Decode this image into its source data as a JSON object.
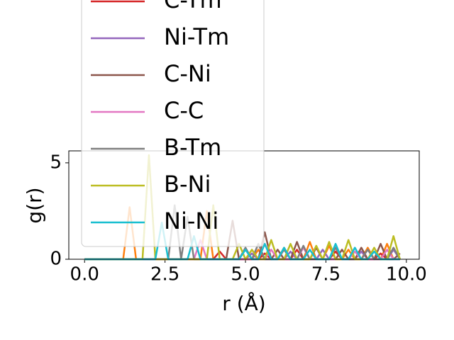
{
  "chart_data": {
    "type": "line",
    "x_label": "r (Å)",
    "y_label": "g(r)",
    "x": [
      0,
      0.2,
      0.4,
      0.6,
      0.8,
      1.0,
      1.2,
      1.4,
      1.6,
      1.8,
      2.0,
      2.2,
      2.4,
      2.6,
      2.8,
      3.0,
      3.2,
      3.4,
      3.6,
      3.8,
      4.0,
      4.2,
      4.4,
      4.6,
      4.8,
      5.0,
      5.2,
      5.4,
      5.6,
      5.8,
      6.0,
      6.2,
      6.4,
      6.6,
      6.8,
      7.0,
      7.2,
      7.4,
      7.6,
      7.8,
      8.0,
      8.2,
      8.4,
      8.6,
      8.8,
      9.0,
      9.2,
      9.4,
      9.6,
      9.8
    ],
    "xlim": [
      -0.49,
      10.4
    ],
    "ylim": [
      0,
      5.62
    ],
    "xticks": [
      {
        "value": 0,
        "label": "0.0"
      },
      {
        "value": 2.5,
        "label": "2.5"
      },
      {
        "value": 5,
        "label": "5.0"
      },
      {
        "value": 7.5,
        "label": "7.5"
      },
      {
        "value": 10,
        "label": "10.0"
      }
    ],
    "yticks": [
      0,
      5
    ],
    "series": [
      {
        "color": "#ff7f0e",
        "values": [
          0,
          0,
          0,
          0,
          0,
          0,
          0,
          2.7,
          0,
          0,
          0,
          0,
          0,
          0,
          0,
          0,
          0,
          0,
          0,
          2.5,
          0,
          0,
          0,
          0,
          0,
          0,
          0,
          0.5,
          0,
          0,
          0,
          0.6,
          0,
          0,
          0,
          0.9,
          0,
          0,
          0.7,
          0,
          0,
          0.5,
          0,
          0,
          0.6,
          0,
          0,
          0.8,
          0,
          0
        ]
      },
      {
        "name": "C-Tm",
        "color": "#d62728",
        "values": [
          0,
          0,
          0,
          0,
          0,
          0,
          0,
          0,
          0,
          0,
          0,
          0,
          0,
          0,
          0,
          0,
          0,
          0,
          0,
          0,
          0,
          0.4,
          0,
          0,
          0,
          0,
          0,
          0,
          0.3,
          0,
          0,
          0,
          0,
          0.5,
          0,
          0,
          0,
          0,
          0,
          0.4,
          0,
          0,
          0,
          0,
          0,
          0,
          0.3,
          0,
          0,
          0
        ]
      },
      {
        "name": "Ni-Tm",
        "color": "#9467bd",
        "values": [
          0,
          0,
          0,
          0,
          0,
          0,
          0,
          0,
          0,
          0,
          0,
          0,
          0,
          0,
          0,
          0,
          0,
          0,
          0,
          0,
          0,
          0,
          0,
          0,
          0,
          0,
          0.3,
          0,
          0,
          0,
          0,
          0,
          0.4,
          0,
          0,
          0,
          0,
          0.5,
          0,
          0,
          0,
          0,
          0,
          0.4,
          0,
          0,
          0,
          0,
          0.5,
          0
        ]
      },
      {
        "name": "C-Ni",
        "color": "#8c564b",
        "values": [
          0,
          0,
          0,
          0,
          0,
          0,
          0,
          0,
          0,
          0,
          0,
          0,
          0,
          0,
          0,
          0,
          0,
          0,
          0,
          0,
          0,
          0,
          0,
          2.0,
          0,
          0,
          0,
          0,
          1.4,
          0,
          0.5,
          0,
          0,
          0.9,
          0,
          0,
          0.6,
          0,
          0,
          0,
          0.5,
          0,
          0,
          0.6,
          0,
          0,
          0.8,
          0,
          0,
          0.3
        ]
      },
      {
        "name": "C-C",
        "color": "#e377c2",
        "values": [
          0,
          0,
          0,
          0,
          0,
          0,
          0,
          0,
          0,
          0,
          0,
          0,
          0,
          0,
          0,
          0,
          0,
          0,
          1.0,
          0,
          0,
          0,
          0,
          0,
          0,
          0,
          0,
          0,
          0,
          0.5,
          0,
          0,
          0,
          0,
          0.6,
          0,
          0,
          0,
          0,
          0,
          0,
          0,
          0.4,
          0,
          0,
          0,
          0,
          0.5,
          0,
          0
        ]
      },
      {
        "name": "B-Tm",
        "color": "#7f7f7f",
        "values": [
          0,
          0,
          0,
          0,
          0,
          0,
          0,
          0,
          0,
          0,
          0,
          0,
          0,
          0,
          2.8,
          0,
          2.2,
          0,
          0,
          0,
          0,
          0,
          0,
          0,
          0,
          0.6,
          0,
          0.8,
          0,
          0,
          0,
          0.5,
          0,
          0,
          0.7,
          0,
          0,
          0,
          0,
          0.6,
          0,
          0,
          0,
          0,
          0.5,
          0,
          0,
          0,
          0.6,
          0
        ]
      },
      {
        "name": "B-Ni",
        "color": "#bcbd22",
        "values": [
          0,
          0,
          0,
          0,
          0,
          0,
          0,
          0,
          0,
          0,
          5.4,
          0,
          0,
          0,
          0,
          0,
          0,
          0,
          0,
          0,
          2.8,
          0,
          0,
          0,
          0.8,
          0,
          0.5,
          0,
          0,
          1.0,
          0,
          0,
          0.8,
          0,
          0,
          0,
          0.7,
          0,
          0.9,
          0,
          0,
          1.0,
          0,
          0,
          0,
          0.6,
          0,
          0,
          1.2,
          0
        ]
      },
      {
        "name": "Ni-Ni",
        "color": "#17becf",
        "values": [
          0,
          0,
          0,
          0,
          0,
          0,
          0,
          0,
          0,
          0,
          0,
          0,
          1.9,
          0,
          0,
          0,
          0,
          1.2,
          0,
          0,
          0,
          0,
          0,
          0,
          0,
          0.5,
          0,
          0,
          0.8,
          0,
          0,
          0.6,
          0,
          0,
          0,
          0.5,
          0,
          0,
          0,
          0.8,
          0,
          0,
          0.6,
          0,
          0,
          0.4,
          0,
          0,
          0,
          0
        ]
      }
    ]
  }
}
